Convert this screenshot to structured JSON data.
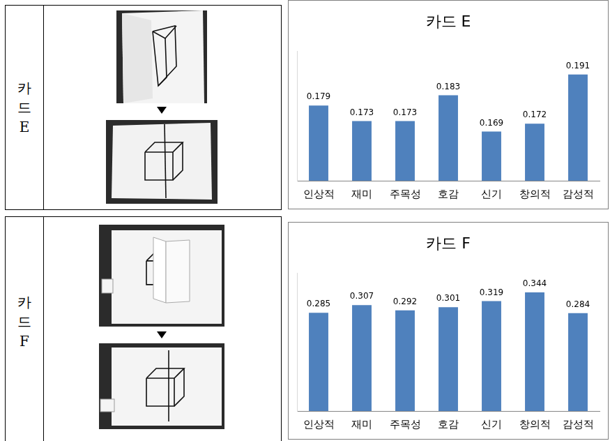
{
  "row_labels": [
    "카드 E",
    "카드 F"
  ],
  "chart_data": [
    {
      "type": "bar",
      "title": "카드 E",
      "categories": [
        "인상적",
        "재미",
        "주목성",
        "호감",
        "신기",
        "창의적",
        "감성적"
      ],
      "values": [
        0.179,
        0.173,
        0.173,
        0.183,
        0.169,
        0.172,
        0.191
      ],
      "color": "#4f81bd",
      "ylim": [
        0.15,
        0.2
      ],
      "grid": false,
      "data_labels": true,
      "tick_labels": "x"
    },
    {
      "type": "bar",
      "title": "카드 F",
      "categories": [
        "인상적",
        "재미",
        "주목성",
        "호감",
        "신기",
        "창의적",
        "감성적"
      ],
      "values": [
        0.285,
        0.307,
        0.292,
        0.301,
        0.319,
        0.344,
        0.284
      ],
      "color": "#4f81bd",
      "ylim": [
        0,
        0.4
      ],
      "grid": false,
      "data_labels": true,
      "tick_labels": "x"
    }
  ]
}
